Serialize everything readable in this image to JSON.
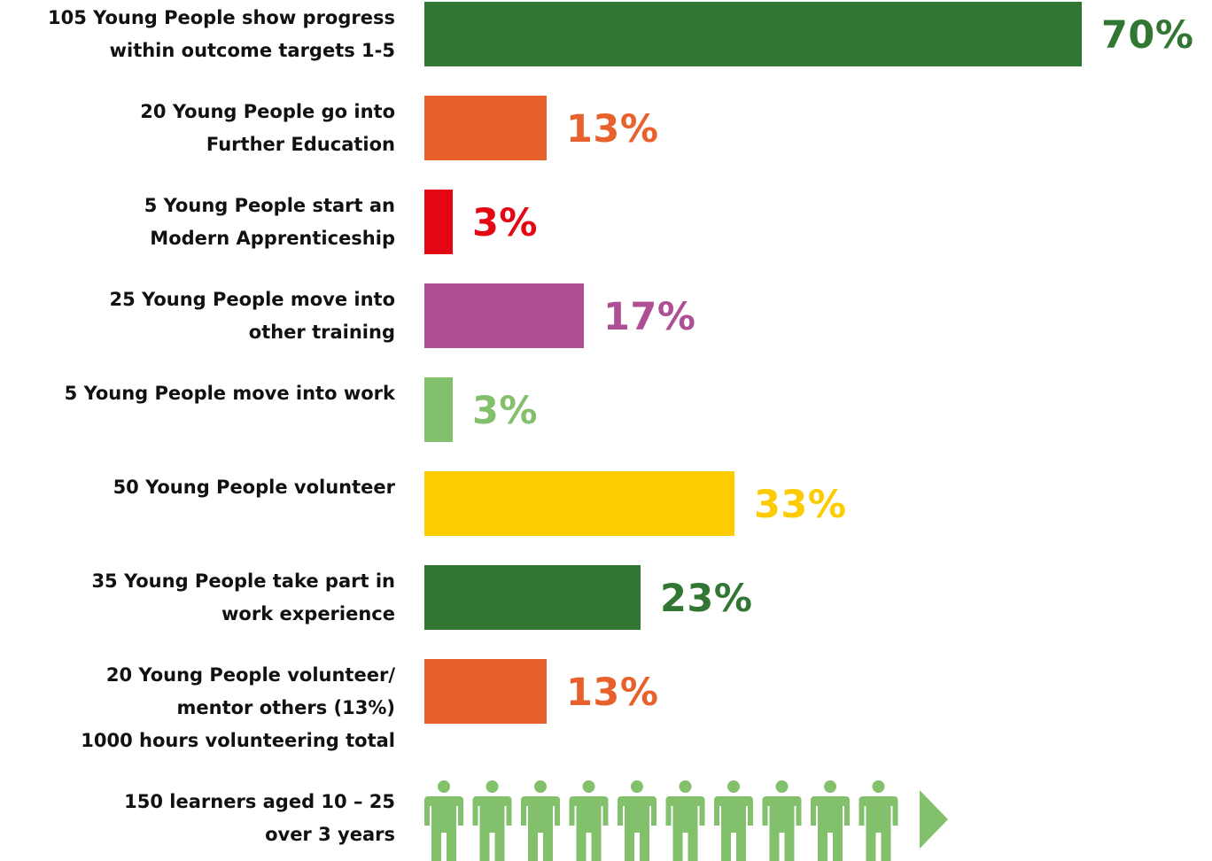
{
  "chart_data": {
    "type": "bar",
    "orientation": "horizontal",
    "categories": [
      "105 Young People show progress\nwithin outcome targets 1-5",
      "20 Young People go into\nFurther Education",
      "5 Young People start an\nModern Apprenticeship",
      "25 Young People move into\nother training",
      "5 Young People move into work",
      "50 Young People volunteer",
      "35 Young People take part in\nwork experience",
      "20 Young People volunteer/\nmentor others (13%)\n1000 hours volunteering total"
    ],
    "values": [
      70,
      13,
      3,
      17,
      3,
      33,
      23,
      13
    ],
    "value_labels": [
      "70%",
      "13%",
      "3%",
      "17%",
      "3%",
      "33%",
      "23%",
      "13%"
    ],
    "colors": [
      "#317733",
      "#E8612C",
      "#E30613",
      "#AE4E95",
      "#82C06C",
      "#FCCC00",
      "#317733",
      "#E8612C"
    ],
    "xlim": [
      0,
      70
    ],
    "grid": false,
    "legend": "none"
  },
  "footer": {
    "label": "150 learners aged 10 – 25\nover 3 years",
    "person_icon": "person-icon",
    "person_count": 10,
    "arrow_icon": "play-arrow-icon",
    "color": "#82C06C"
  }
}
